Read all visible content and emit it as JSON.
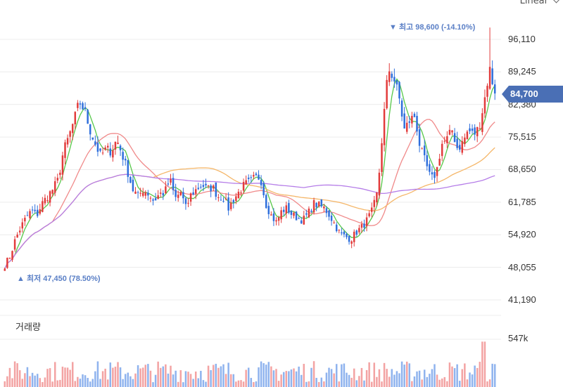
{
  "scale_selector": {
    "label": "Linear"
  },
  "price_tag": {
    "value": "84,700",
    "color": "#4a6fb5"
  },
  "annotations": {
    "high": "▼ 최고 98,600 (-14.10%)",
    "low": "▲ 최저 47,450 (78.50%)"
  },
  "volume_panel": {
    "title": "거래량",
    "tick": "547k"
  },
  "colors": {
    "up": "#e23b3b",
    "down": "#2f6fdc",
    "ma5": "#57c84a",
    "ma20": "#f08a8a",
    "ma60": "#f5b76a",
    "ma120": "#b57de8",
    "grid": "#ececec"
  },
  "chart_data": {
    "type": "candlestick",
    "y_ticks": [
      "96,110",
      "89,245",
      "82,380",
      "75,515",
      "68,650",
      "61,785",
      "54,920",
      "48,055",
      "41,190"
    ],
    "y_tick_values": [
      96110,
      89245,
      82380,
      75515,
      68650,
      61785,
      54920,
      48055,
      41190
    ],
    "ylim": [
      40000,
      100700
    ],
    "high": 98600,
    "low": 47450,
    "last": 84700,
    "closes": [
      48500,
      50500,
      54000,
      56500,
      58500,
      60000,
      59000,
      61500,
      63000,
      64500,
      66500,
      72500,
      75500,
      79000,
      83000,
      81000,
      77000,
      74000,
      71500,
      73000,
      72500,
      75000,
      72000,
      68500,
      64500,
      63000,
      64500,
      63500,
      62000,
      63500,
      63800,
      66500,
      62500,
      64000,
      60500,
      63500,
      64500,
      65500,
      64500,
      65000,
      63000,
      62800,
      60500,
      62500,
      64000,
      65500,
      66000,
      67000,
      67000,
      61500,
      59000,
      57500,
      60000,
      60500,
      59000,
      58500,
      58000,
      59500,
      61500,
      61000,
      60500,
      59000,
      57000,
      55000,
      54500,
      54000,
      55500,
      56500,
      58000,
      60000,
      64000,
      78000,
      90000,
      88000,
      84000,
      77000,
      79000,
      80000,
      73000,
      70000,
      66500,
      68000,
      74000,
      75000,
      77000,
      73000,
      74500,
      77000,
      76000,
      77500,
      83000,
      90000,
      84700
    ],
    "volume_max_tick": 547000,
    "ma_periods": [
      5,
      20,
      60,
      120
    ]
  }
}
